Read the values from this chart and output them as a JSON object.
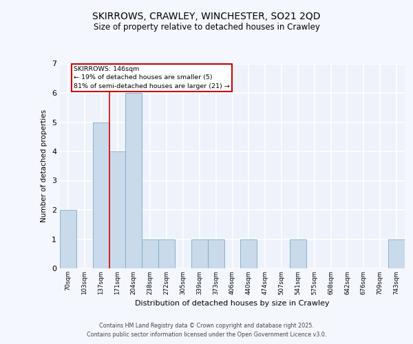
{
  "title_line1": "SKIRROWS, CRAWLEY, WINCHESTER, SO21 2QD",
  "title_line2": "Size of property relative to detached houses in Crawley",
  "xlabel": "Distribution of detached houses by size in Crawley",
  "ylabel": "Number of detached properties",
  "categories": [
    "70sqm",
    "103sqm",
    "137sqm",
    "171sqm",
    "204sqm",
    "238sqm",
    "272sqm",
    "305sqm",
    "339sqm",
    "373sqm",
    "406sqm",
    "440sqm",
    "474sqm",
    "507sqm",
    "541sqm",
    "575sqm",
    "608sqm",
    "642sqm",
    "676sqm",
    "709sqm",
    "743sqm"
  ],
  "values": [
    2,
    0,
    5,
    4,
    6,
    1,
    1,
    0,
    1,
    1,
    0,
    1,
    0,
    0,
    1,
    0,
    0,
    0,
    0,
    0,
    1
  ],
  "bar_color": "#c9daea",
  "bar_edge_color": "#7aaac8",
  "background_color": "#eef2fb",
  "grid_color": "#ffffff",
  "red_line_x": 2.5,
  "annotation_text": "SKIRROWS: 146sqm\n← 19% of detached houses are smaller (5)\n81% of semi-detached houses are larger (21) →",
  "annotation_box_color": "#ffffff",
  "annotation_box_edge": "#cc0000",
  "footnote_line1": "Contains HM Land Registry data © Crown copyright and database right 2025.",
  "footnote_line2": "Contains public sector information licensed under the Open Government Licence v3.0.",
  "ylim": [
    0,
    7
  ],
  "yticks": [
    0,
    1,
    2,
    3,
    4,
    5,
    6,
    7
  ]
}
